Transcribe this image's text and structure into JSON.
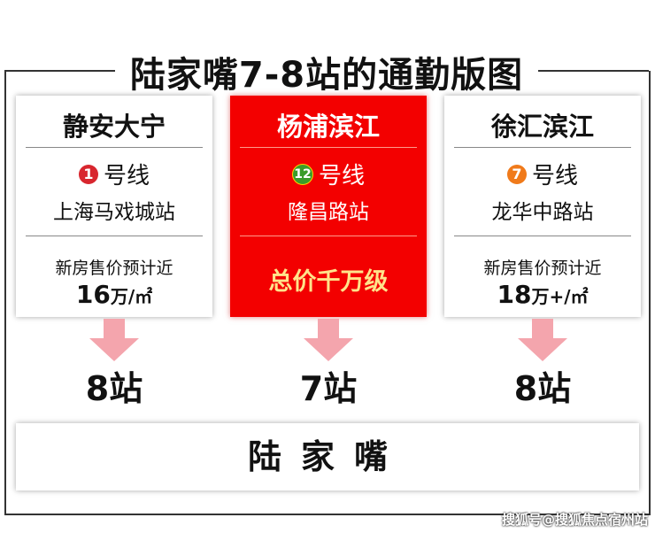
{
  "title": "陆家嘴7-8站的通勤版图",
  "cards": [
    {
      "name": "静安大宁",
      "line_no": "1",
      "line_label": "号线",
      "line_color": "#d8262e",
      "station": "上海马戏城站",
      "presale": "新房售价预计近",
      "price": "16",
      "price_unit": "万/㎡",
      "stops": "8站"
    },
    {
      "name": "杨浦滨江",
      "line_no": "12",
      "line_label": "号线",
      "line_color": "#3a9b2a",
      "station": "隆昌路站",
      "highlight": "总价千万级",
      "stops": "7站"
    },
    {
      "name": "徐汇滨江",
      "line_no": "7",
      "line_label": "号线",
      "line_color": "#f07a1a",
      "station": "龙华中路站",
      "presale": "新房售价预计近",
      "price": "18",
      "price_unit": "万+/㎡",
      "stops": "8站"
    }
  ],
  "destination": "陆家嘴",
  "watermark": "搜狐号@搜狐焦点宿州站",
  "colors": {
    "highlight_red": "#f30000",
    "arrow": "#f4a5ad"
  }
}
